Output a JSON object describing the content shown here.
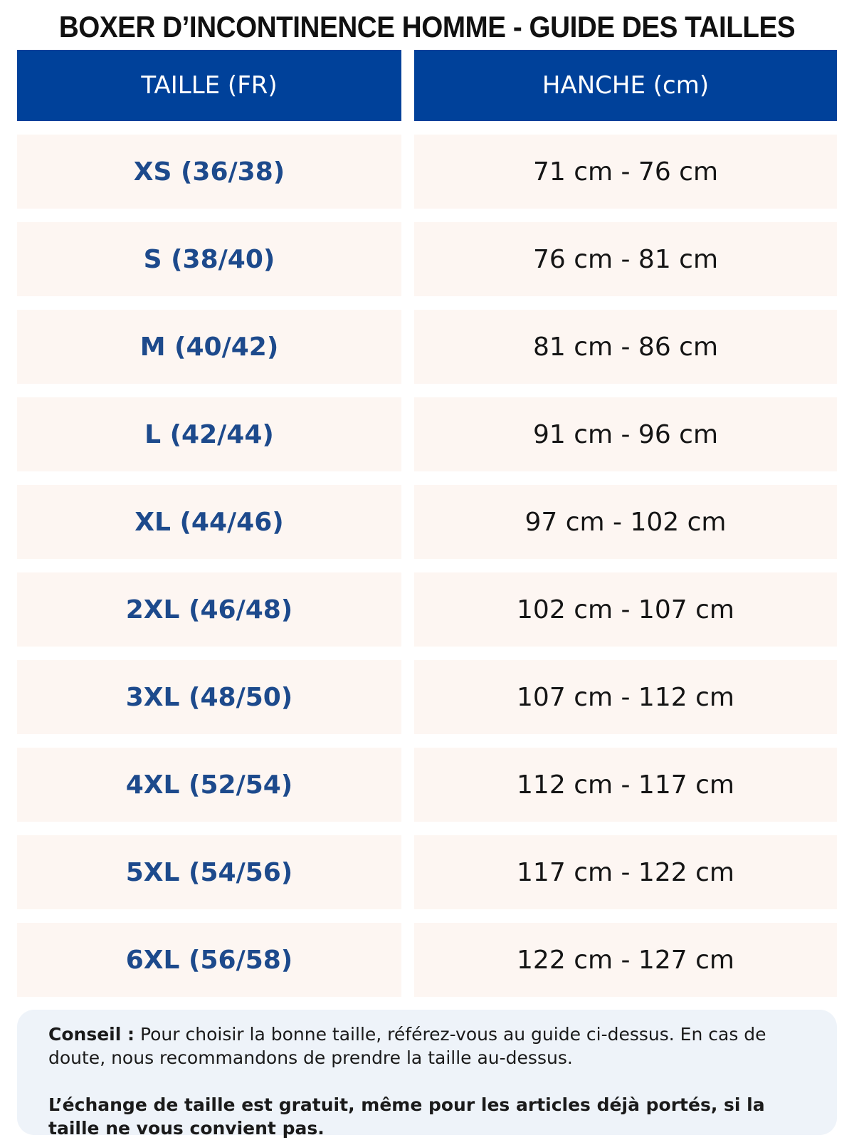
{
  "header": {
    "title": "BOXER D’INCONTINENCE HOMME - GUIDE DES TAILLES"
  },
  "table": {
    "columns": [
      "TAILLE (FR)",
      "HANCHE (cm)"
    ],
    "rows": [
      [
        "XS (36/38)",
        "71 cm - 76 cm"
      ],
      [
        "S (38/40)",
        "76 cm - 81 cm"
      ],
      [
        "M (40/42)",
        "81 cm - 86 cm"
      ],
      [
        "L (42/44)",
        "91 cm - 96 cm"
      ],
      [
        "XL (44/46)",
        "97 cm - 102 cm"
      ],
      [
        "2XL (46/48)",
        "102 cm - 107 cm"
      ],
      [
        "3XL (48/50)",
        "107 cm - 112 cm"
      ],
      [
        "4XL (52/54)",
        "112 cm - 117 cm"
      ],
      [
        "5XL (54/56)",
        "117 cm - 122 cm"
      ],
      [
        "6XL (56/58)",
        "122 cm - 127 cm"
      ]
    ]
  },
  "note": {
    "label": "Conseil :",
    "text": "Pour choisir la bonne taille, référez-vous au guide ci-dessus. En cas de doute, nous recommandons de prendre la taille au-dessus.",
    "emphasis": "L’échange de taille est gratuit, même pour les articles déjà portés, si la taille ne vous convient pas."
  }
}
